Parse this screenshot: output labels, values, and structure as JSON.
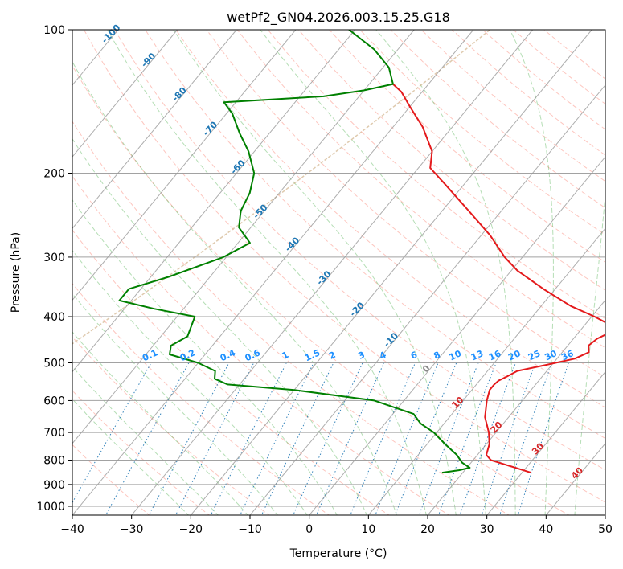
{
  "chart_data": {
    "type": "line",
    "subtype": "skew-t log-p",
    "title": "wetPf2_GN04.2026.003.15.25.G18",
    "xlabel": "Temperature (°C)",
    "ylabel": "Pressure (hPa)",
    "xlim": [
      -40,
      50
    ],
    "ylim": [
      1050,
      100
    ],
    "grid": true,
    "x_ticks": [
      "−40",
      "−30",
      "−20",
      "−10",
      "0",
      "10",
      "20",
      "30",
      "40",
      "50"
    ],
    "x_tick_values": [
      -40,
      -30,
      -20,
      -10,
      0,
      10,
      20,
      30,
      40,
      50
    ],
    "y_ticks": [
      "100",
      "200",
      "300",
      "400",
      "500",
      "600",
      "700",
      "800",
      "900",
      "1000"
    ],
    "y_tick_values": [
      100,
      200,
      300,
      400,
      500,
      600,
      700,
      800,
      900,
      1000
    ],
    "colors": {
      "temperature": "#e41a1c",
      "dewpoint": "#008000",
      "dry_adiabat": "#fa8072",
      "moist_adiabat": "#2ca02c",
      "mixing_ratio": "#1f77b4",
      "mixing_ratio_label": "#1e90ff",
      "isotherm_label": "#1f77b4",
      "dry_label": "#d62728",
      "isobar": "#999999",
      "skew_isotherm": "#999999",
      "tan_curve": "#d2b48c"
    },
    "series": [
      {
        "name": "temperature",
        "points": [
          {
            "p": 850,
            "t": 31.5
          },
          {
            "p": 820,
            "t": 26.5
          },
          {
            "p": 800,
            "t": 23.0
          },
          {
            "p": 780,
            "t": 21.5
          },
          {
            "p": 740,
            "t": 20.5
          },
          {
            "p": 700,
            "t": 18.8
          },
          {
            "p": 650,
            "t": 16.0
          },
          {
            "p": 600,
            "t": 14.0
          },
          {
            "p": 570,
            "t": 13.0
          },
          {
            "p": 555,
            "t": 13.0
          },
          {
            "p": 545,
            "t": 13.2
          },
          {
            "p": 535,
            "t": 14.0
          },
          {
            "p": 520,
            "t": 15.0
          },
          {
            "p": 505,
            "t": 19.0
          },
          {
            "p": 490,
            "t": 23.0
          },
          {
            "p": 475,
            "t": 24.5
          },
          {
            "p": 460,
            "t": 23.5
          },
          {
            "p": 445,
            "t": 24.0
          },
          {
            "p": 430,
            "t": 25.5
          },
          {
            "p": 415,
            "t": 24.0
          },
          {
            "p": 400,
            "t": 20.5
          },
          {
            "p": 380,
            "t": 15.0
          },
          {
            "p": 350,
            "t": 8.0
          },
          {
            "p": 320,
            "t": 1.0
          },
          {
            "p": 300,
            "t": -3.0
          },
          {
            "p": 270,
            "t": -8.5
          },
          {
            "p": 240,
            "t": -15.5
          },
          {
            "p": 210,
            "t": -23.5
          },
          {
            "p": 195,
            "t": -28.0
          },
          {
            "p": 180,
            "t": -30.0
          },
          {
            "p": 160,
            "t": -35.0
          },
          {
            "p": 145,
            "t": -40.0
          },
          {
            "p": 135,
            "t": -43.5
          },
          {
            "p": 130,
            "t": -46.0
          }
        ]
      },
      {
        "name": "dewpoint",
        "points": [
          {
            "p": 850,
            "t": 16.5
          },
          {
            "p": 840,
            "t": 19.0
          },
          {
            "p": 830,
            "t": 20.5
          },
          {
            "p": 810,
            "t": 18.5
          },
          {
            "p": 780,
            "t": 16.5
          },
          {
            "p": 740,
            "t": 13.0
          },
          {
            "p": 700,
            "t": 9.5
          },
          {
            "p": 670,
            "t": 6.0
          },
          {
            "p": 640,
            "t": 3.5
          },
          {
            "p": 600,
            "t": -5.0
          },
          {
            "p": 570,
            "t": -20.0
          },
          {
            "p": 555,
            "t": -32.0
          },
          {
            "p": 540,
            "t": -35.0
          },
          {
            "p": 520,
            "t": -36.0
          },
          {
            "p": 500,
            "t": -40.0
          },
          {
            "p": 480,
            "t": -46.0
          },
          {
            "p": 460,
            "t": -47.0
          },
          {
            "p": 440,
            "t": -45.5
          },
          {
            "p": 400,
            "t": -47.0
          },
          {
            "p": 385,
            "t": -55.0
          },
          {
            "p": 370,
            "t": -62.0
          },
          {
            "p": 350,
            "t": -62.0
          },
          {
            "p": 330,
            "t": -57.0
          },
          {
            "p": 300,
            "t": -50.5
          },
          {
            "p": 280,
            "t": -48.0
          },
          {
            "p": 260,
            "t": -52.0
          },
          {
            "p": 240,
            "t": -54.0
          },
          {
            "p": 220,
            "t": -55.0
          },
          {
            "p": 200,
            "t": -57.0
          },
          {
            "p": 180,
            "t": -61.0
          },
          {
            "p": 165,
            "t": -65.0
          },
          {
            "p": 150,
            "t": -69.0
          },
          {
            "p": 142,
            "t": -72.0
          },
          {
            "p": 138,
            "t": -56.0
          },
          {
            "p": 134,
            "t": -50.0
          },
          {
            "p": 130,
            "t": -46.0
          },
          {
            "p": 120,
            "t": -49.0
          },
          {
            "p": 110,
            "t": -54.0
          },
          {
            "p": 100,
            "t": -61.0
          }
        ]
      }
    ],
    "isotherm_labels": [
      "-100",
      "-90",
      "-80",
      "-70",
      "-60",
      "-50",
      "-40",
      "-30",
      "-20",
      "-10"
    ],
    "isotherm_label_values": [
      -100,
      -90,
      -80,
      -70,
      -60,
      -50,
      -40,
      -30,
      -20,
      -10
    ],
    "mixing_ratio_labels": [
      "0.1",
      "0.2",
      "0.4",
      "0.6",
      "1",
      "1.5",
      "2",
      "3",
      "4",
      "6",
      "8",
      "10",
      "13",
      "16",
      "20",
      "25",
      "30",
      "36"
    ],
    "mixing_ratio_values": [
      0.1,
      0.2,
      0.4,
      0.6,
      1,
      1.5,
      2,
      3,
      4,
      6,
      8,
      10,
      13,
      16,
      20,
      25,
      30,
      36
    ],
    "dry_adiabat_labels": [
      "0",
      "10",
      "20",
      "30",
      "40"
    ],
    "dry_adiabat_label_values": [
      0,
      10,
      20,
      30,
      40
    ]
  }
}
